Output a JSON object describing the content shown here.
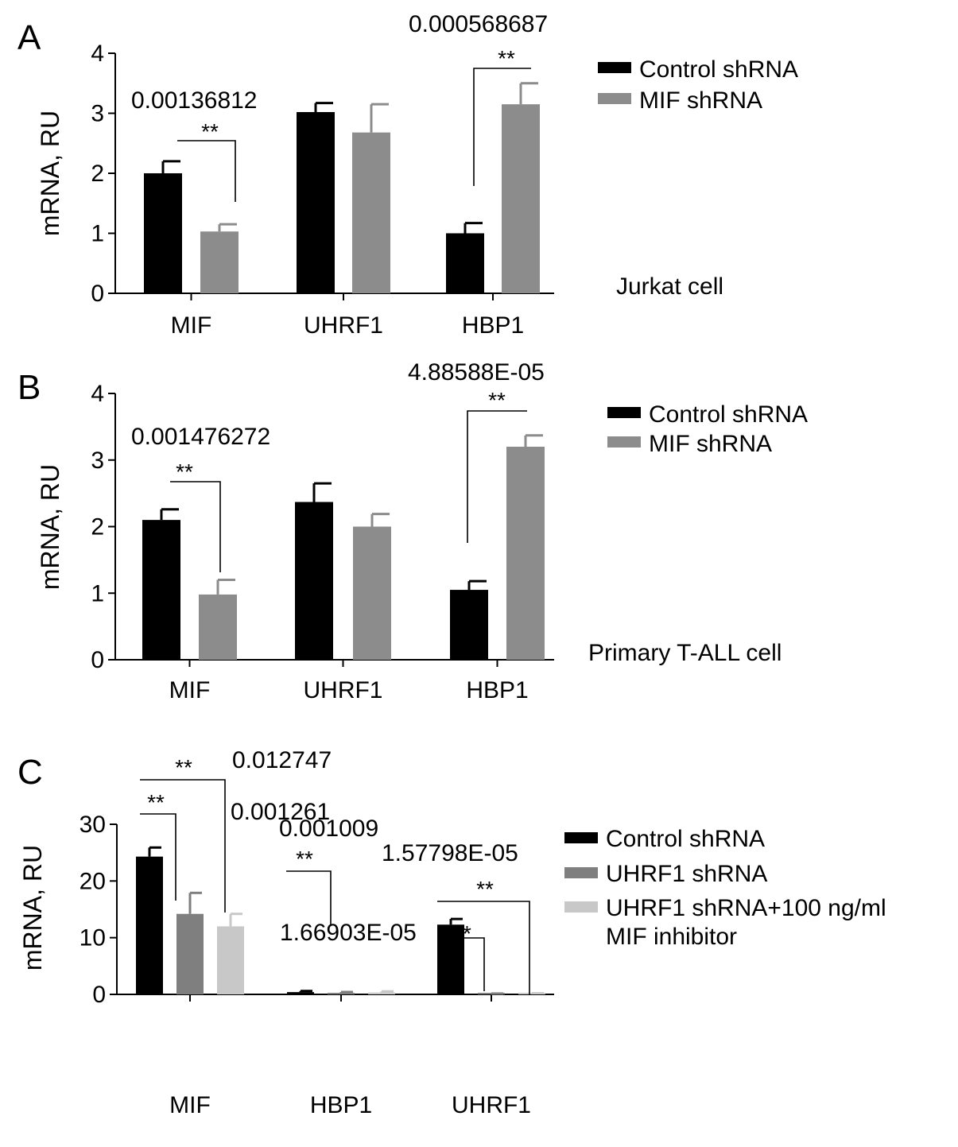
{
  "colors": {
    "control": "#000000",
    "mif_shrna": "#8c8c8c",
    "uhrf1_shrna": "#7f7f7f",
    "uhrf1_shrna_inhibitor": "#c8c8c8",
    "axis": "#000000",
    "background": "#ffffff"
  },
  "chart_data": [
    {
      "panel": "A",
      "type": "bar",
      "ylabel": "mRNA, RU",
      "ylim": [
        0,
        4
      ],
      "yticks": [
        "0",
        "1",
        "2",
        "3",
        "4"
      ],
      "categories": [
        "MIF",
        "UHRF1",
        "HBP1"
      ],
      "series": [
        {
          "name": "Control shRNA",
          "color": "#000000",
          "values": [
            2.0,
            3.02,
            1.0
          ],
          "errors": [
            0.2,
            0.15,
            0.17
          ]
        },
        {
          "name": "MIF shRNA",
          "color": "#8c8c8c",
          "values": [
            1.03,
            2.68,
            3.15
          ],
          "errors": [
            0.12,
            0.47,
            0.35
          ]
        }
      ],
      "annotation": "Jurkat cell",
      "legend_position": "top-right",
      "significance": [
        {
          "category": "MIF",
          "stars": "**",
          "p_value": "0.00136812"
        },
        {
          "category": "HBP1",
          "stars": "**",
          "p_value": "0.000568687"
        }
      ]
    },
    {
      "panel": "B",
      "type": "bar",
      "ylabel": "mRNA, RU",
      "ylim": [
        0,
        4
      ],
      "yticks": [
        "0",
        "1",
        "2",
        "3",
        "4"
      ],
      "categories": [
        "MIF",
        "UHRF1",
        "HBP1"
      ],
      "series": [
        {
          "name": "Control shRNA",
          "color": "#000000",
          "values": [
            2.1,
            2.37,
            1.05
          ],
          "errors": [
            0.16,
            0.28,
            0.13
          ]
        },
        {
          "name": "MIF shRNA",
          "color": "#8c8c8c",
          "values": [
            0.98,
            2.0,
            3.2
          ],
          "errors": [
            0.22,
            0.19,
            0.17
          ]
        }
      ],
      "annotation": "Primary T-ALL cell",
      "legend_position": "top-right",
      "significance": [
        {
          "category": "MIF",
          "stars": "**",
          "p_value": "0.001476272"
        },
        {
          "category": "HBP1",
          "stars": "**",
          "p_value": "4.88588E-05"
        }
      ]
    },
    {
      "panel": "C",
      "type": "bar",
      "ylabel": "mRNA, RU",
      "ylim": [
        0,
        30
      ],
      "yticks": [
        "0",
        "10",
        "20",
        "30"
      ],
      "categories": [
        "MIF",
        "HBP1",
        "UHRF1"
      ],
      "series": [
        {
          "name": "Control shRNA",
          "color": "#000000",
          "values": [
            24.3,
            0.4,
            12.3
          ],
          "errors": [
            1.6,
            0.2,
            1.0
          ]
        },
        {
          "name": "UHRF1 shRNA",
          "color": "#7f7f7f",
          "values": [
            14.2,
            0.22,
            0.1
          ],
          "errors": [
            3.7,
            0.2,
            0.05
          ]
        },
        {
          "name": "UHRF1 shRNA+100 ng/ml MIF inhibitor",
          "color": "#c8c8c8",
          "values": [
            12.0,
            0.33,
            0.15
          ],
          "errors": [
            2.2,
            0.2,
            0.05
          ]
        }
      ],
      "legend_position": "right",
      "significance": [
        {
          "category": "MIF",
          "stars": "**",
          "p_value": "0.012747",
          "compare": "control vs inhibitor"
        },
        {
          "category": "MIF",
          "stars": "**",
          "p_value": "0.001261",
          "compare": "control vs UHRF1 shRNA"
        },
        {
          "category": "HBP1",
          "stars": "**",
          "p_value": "0.001009"
        },
        {
          "category": "UHRF1",
          "stars": "**",
          "p_value": "1.66903E-05",
          "compare": "control vs UHRF1 shRNA"
        },
        {
          "category": "UHRF1",
          "stars": "**",
          "p_value": "1.57798E-05",
          "compare": "control vs inhibitor"
        }
      ]
    }
  ]
}
